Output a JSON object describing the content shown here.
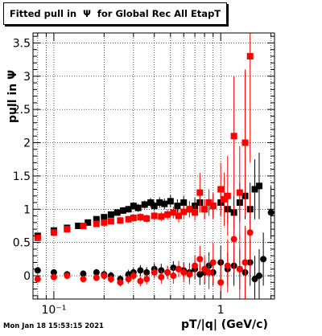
{
  "chart_data": {
    "type": "scatter",
    "title": "Fitted pull in  Ψ  for Global Rec All EtapT",
    "xlabel": "pT/|q| (GeV/c)",
    "ylabel": "pull in Ψ",
    "x_scale": "log",
    "xlim": [
      0.075,
      2.1
    ],
    "ylim": [
      -0.35,
      3.65
    ],
    "x_tick_labels": [
      "10⁻¹",
      "1"
    ],
    "y_tick_labels": [
      "0",
      "0.5",
      "1",
      "1.5",
      "2",
      "2.5",
      "3",
      "3.5"
    ],
    "grid": true,
    "series": [
      {
        "color": "#000000",
        "marker": "square",
        "x": [
          0.08,
          0.1,
          0.12,
          0.14,
          0.16,
          0.18,
          0.2,
          0.22,
          0.24,
          0.26,
          0.28,
          0.3,
          0.32,
          0.35,
          0.38,
          0.4,
          0.43,
          0.46,
          0.5,
          0.55,
          0.6,
          0.65,
          0.7,
          0.75,
          0.8,
          0.9,
          1.0,
          1.1,
          1.2,
          1.3,
          1.4,
          1.5,
          1.6,
          1.7
        ],
        "y": [
          0.6,
          0.68,
          0.72,
          0.75,
          0.8,
          0.85,
          0.88,
          0.92,
          0.95,
          0.98,
          1.0,
          1.05,
          1.02,
          1.07,
          1.1,
          1.05,
          1.1,
          1.08,
          1.12,
          1.05,
          1.1,
          1.0,
          1.05,
          1.1,
          1.0,
          1.05,
          1.1,
          1.0,
          0.95,
          1.1,
          1.2,
          1.0,
          1.3,
          1.35
        ],
        "err": [
          0.03,
          0.03,
          0.03,
          0.03,
          0.03,
          0.04,
          0.04,
          0.04,
          0.05,
          0.05,
          0.05,
          0.05,
          0.06,
          0.06,
          0.07,
          0.07,
          0.08,
          0.08,
          0.09,
          0.1,
          0.1,
          0.12,
          0.12,
          0.14,
          0.15,
          0.18,
          0.2,
          0.22,
          0.25,
          0.3,
          0.35,
          0.4,
          0.45,
          0.5
        ]
      },
      {
        "color": "#ff0000",
        "marker": "square",
        "x": [
          0.08,
          0.1,
          0.12,
          0.15,
          0.18,
          0.2,
          0.22,
          0.25,
          0.28,
          0.3,
          0.33,
          0.36,
          0.4,
          0.44,
          0.48,
          0.52,
          0.56,
          0.6,
          0.65,
          0.7,
          0.75,
          0.8,
          0.85,
          0.9,
          1.0,
          1.05,
          1.1,
          1.2,
          1.3,
          1.4,
          1.5
        ],
        "y": [
          0.57,
          0.65,
          0.7,
          0.75,
          0.78,
          0.8,
          0.82,
          0.83,
          0.85,
          0.87,
          0.88,
          0.86,
          0.9,
          0.89,
          0.92,
          0.95,
          0.9,
          0.96,
          1.0,
          0.95,
          1.25,
          1.0,
          1.1,
          1.05,
          1.3,
          1.15,
          1.2,
          2.1,
          1.25,
          2.0,
          3.3
        ],
        "err": [
          0.03,
          0.03,
          0.03,
          0.03,
          0.04,
          0.04,
          0.04,
          0.05,
          0.05,
          0.05,
          0.06,
          0.06,
          0.07,
          0.07,
          0.08,
          0.09,
          0.1,
          0.1,
          0.12,
          0.12,
          0.3,
          0.15,
          0.2,
          0.2,
          0.4,
          0.4,
          0.6,
          0.9,
          0.7,
          1.1,
          1.6
        ]
      },
      {
        "color": "#000000",
        "marker": "circle",
        "x": [
          0.08,
          0.1,
          0.12,
          0.15,
          0.18,
          0.2,
          0.22,
          0.25,
          0.28,
          0.3,
          0.33,
          0.36,
          0.4,
          0.44,
          0.48,
          0.52,
          0.56,
          0.6,
          0.65,
          0.7,
          0.75,
          0.8,
          0.85,
          0.9,
          1.0,
          1.1,
          1.2,
          1.3,
          1.4,
          1.5,
          1.6,
          1.7,
          1.8,
          2.0
        ],
        "y": [
          0.08,
          0.05,
          0.02,
          0.03,
          0.05,
          0.02,
          0.0,
          -0.05,
          0.02,
          0.05,
          0.08,
          0.05,
          0.1,
          0.08,
          0.05,
          0.12,
          0.1,
          0.08,
          0.05,
          0.1,
          0.02,
          0.05,
          0.15,
          0.05,
          0.2,
          0.1,
          0.15,
          0.1,
          0.05,
          0.2,
          -0.05,
          0.0,
          0.25,
          0.95
        ],
        "err": [
          0.05,
          0.05,
          0.05,
          0.05,
          0.05,
          0.06,
          0.06,
          0.06,
          0.07,
          0.07,
          0.08,
          0.08,
          0.09,
          0.1,
          0.1,
          0.1,
          0.12,
          0.12,
          0.14,
          0.15,
          0.16,
          0.18,
          0.2,
          0.2,
          0.25,
          0.25,
          0.3,
          0.3,
          0.3,
          0.35,
          0.35,
          0.4,
          0.4,
          0.4
        ]
      },
      {
        "color": "#ff0000",
        "marker": "circle",
        "x": [
          0.08,
          0.1,
          0.12,
          0.15,
          0.18,
          0.2,
          0.22,
          0.25,
          0.28,
          0.3,
          0.33,
          0.36,
          0.4,
          0.44,
          0.48,
          0.52,
          0.56,
          0.6,
          0.65,
          0.7,
          0.75,
          0.8,
          0.85,
          0.9,
          1.0,
          1.1,
          1.2,
          1.3,
          1.4,
          1.5
        ],
        "y": [
          -0.05,
          -0.02,
          0.0,
          -0.05,
          -0.03,
          0.0,
          -0.05,
          -0.1,
          -0.05,
          0.0,
          -0.08,
          -0.05,
          0.05,
          -0.02,
          0.05,
          0.0,
          0.1,
          0.05,
          0.02,
          0.15,
          0.25,
          0.1,
          0.05,
          0.2,
          -0.1,
          0.15,
          0.55,
          0.1,
          0.2,
          0.65
        ],
        "err": [
          0.05,
          0.05,
          0.05,
          0.05,
          0.05,
          0.06,
          0.06,
          0.06,
          0.07,
          0.07,
          0.08,
          0.08,
          0.09,
          0.1,
          0.1,
          0.12,
          0.12,
          0.14,
          0.15,
          0.16,
          0.2,
          0.2,
          0.25,
          0.3,
          0.35,
          0.4,
          0.5,
          0.5,
          0.55,
          0.6
        ]
      }
    ]
  },
  "footer": {
    "timestamp": "Mon Jan 18 15:53:15 2021"
  }
}
